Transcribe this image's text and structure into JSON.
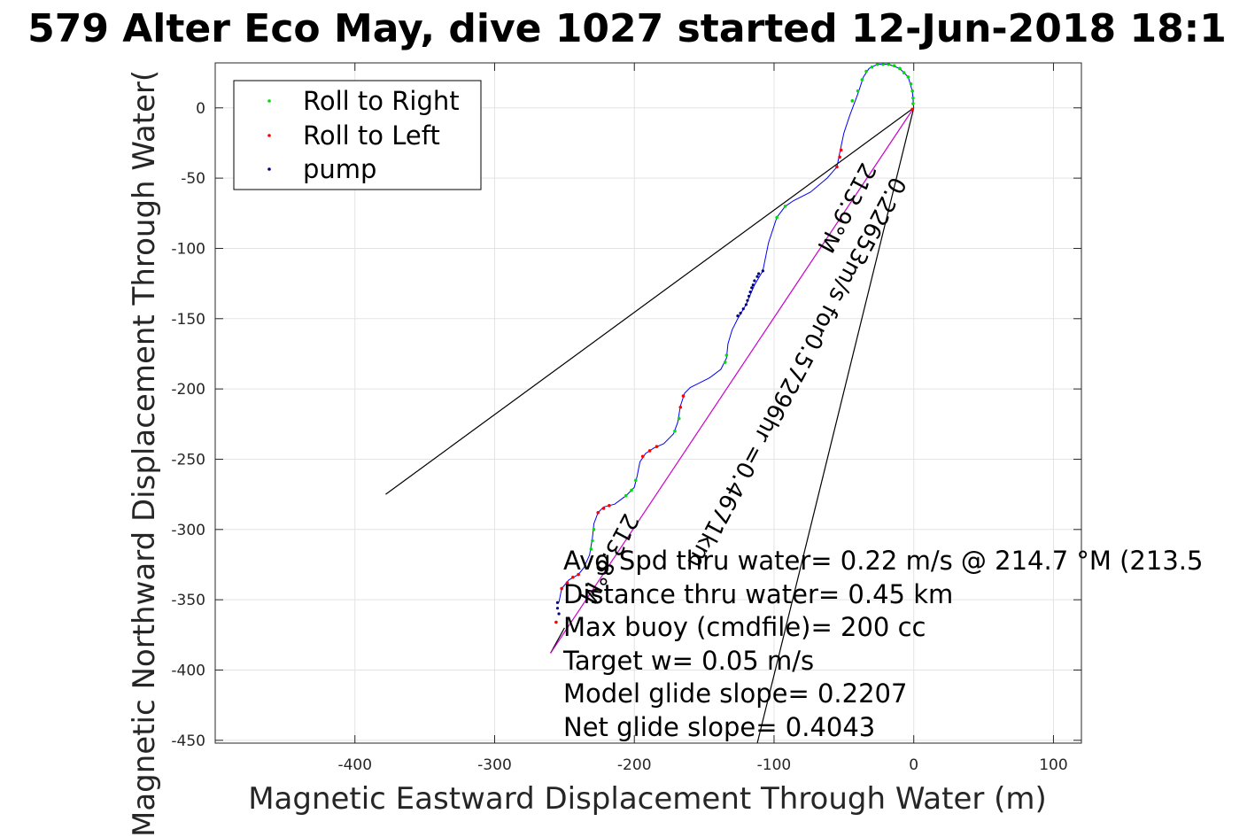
{
  "chart_data": {
    "type": "scatter",
    "title": "579 Alter Eco May, dive 1027 started 12-Jun-2018 18:1",
    "xlabel": "Magnetic Eastward Displacement Through Water (m)",
    "ylabel": "Magnetic Northward Displacement Through Water(",
    "xlim": [
      -500,
      120
    ],
    "ylim": [
      -452,
      32
    ],
    "xticks": [
      -400,
      -300,
      -200,
      -100,
      0,
      100
    ],
    "yticks": [
      0,
      -50,
      -100,
      -150,
      -200,
      -250,
      -300,
      -350,
      -400,
      -450
    ],
    "grid": true,
    "legend": {
      "placement": "top-left",
      "entries": [
        "Roll to Right",
        "Roll to Left",
        "pump"
      ]
    },
    "colors": {
      "roll_right": "#00dd00",
      "roll_left": "#ff0000",
      "pump": "#000080",
      "track": "#0000ff",
      "heading_line": "#cc00cc",
      "ref_line": "#000000"
    },
    "track": [
      [
        -254,
        -352
      ],
      [
        -252,
        -342
      ],
      [
        -247,
        -336
      ],
      [
        -240,
        -332
      ],
      [
        -236,
        -327
      ],
      [
        -232,
        -318
      ],
      [
        -230,
        -306
      ],
      [
        -229,
        -296
      ],
      [
        -226,
        -288
      ],
      [
        -222,
        -284
      ],
      [
        -214,
        -282
      ],
      [
        -206,
        -276
      ],
      [
        -200,
        -270
      ],
      [
        -198,
        -262
      ],
      [
        -196,
        -252
      ],
      [
        -192,
        -246
      ],
      [
        -186,
        -242
      ],
      [
        -179,
        -239
      ],
      [
        -172,
        -232
      ],
      [
        -169,
        -224
      ],
      [
        -167,
        -212
      ],
      [
        -164,
        -203
      ],
      [
        -160,
        -199
      ],
      [
        -154,
        -196
      ],
      [
        -146,
        -192
      ],
      [
        -138,
        -186
      ],
      [
        -134,
        -178
      ],
      [
        -133,
        -168
      ],
      [
        -130,
        -158
      ],
      [
        -126,
        -150
      ],
      [
        -120,
        -140
      ],
      [
        -114,
        -126
      ],
      [
        -108,
        -116
      ],
      [
        -104,
        -96
      ],
      [
        -98,
        -78
      ],
      [
        -92,
        -70
      ],
      [
        -86,
        -66
      ],
      [
        -74,
        -60
      ],
      [
        -62,
        -50
      ],
      [
        -55,
        -42
      ],
      [
        -53,
        -32
      ],
      [
        -50,
        -18
      ],
      [
        -46,
        -6
      ],
      [
        -40,
        10
      ],
      [
        -36,
        22
      ],
      [
        -32,
        28
      ],
      [
        -26,
        31
      ],
      [
        -18,
        31
      ],
      [
        -10,
        28
      ],
      [
        -4,
        22
      ],
      [
        -1,
        12
      ],
      [
        0,
        0
      ]
    ],
    "roll_right_points": [
      [
        -231,
        -314
      ],
      [
        -230,
        -308
      ],
      [
        -229,
        -300
      ],
      [
        -206,
        -276
      ],
      [
        -202,
        -272
      ],
      [
        -199,
        -265
      ],
      [
        -171,
        -230
      ],
      [
        -168,
        -221
      ],
      [
        -135,
        -181
      ],
      [
        -134,
        -176
      ],
      [
        -98,
        -78
      ],
      [
        -92,
        -70
      ],
      [
        -44,
        5
      ],
      [
        -40,
        12
      ],
      [
        -37,
        20
      ],
      [
        -34,
        26
      ],
      [
        -30,
        29
      ],
      [
        -26,
        31
      ],
      [
        -22,
        31
      ],
      [
        -18,
        31
      ],
      [
        -14,
        30
      ],
      [
        -10,
        28
      ],
      [
        -7,
        25
      ],
      [
        -4,
        22
      ],
      [
        -2,
        17
      ],
      [
        -1,
        12
      ],
      [
        -0.5,
        7
      ],
      [
        -0.5,
        3
      ]
    ],
    "roll_left_points": [
      [
        -252,
        -342
      ],
      [
        -248,
        -338
      ],
      [
        -244,
        -334
      ],
      [
        -240,
        -332
      ],
      [
        -226,
        -288
      ],
      [
        -222,
        -285
      ],
      [
        -218,
        -283
      ],
      [
        -194,
        -248
      ],
      [
        -189,
        -244
      ],
      [
        -184,
        -241
      ],
      [
        -167,
        -213
      ],
      [
        -165,
        -205
      ],
      [
        -55,
        -42
      ],
      [
        -53,
        -35
      ],
      [
        -52,
        -30
      ],
      [
        -256,
        -366
      ],
      [
        -1,
        -1
      ]
    ],
    "pump_points": [
      [
        -255,
        -352
      ],
      [
        -255,
        -356
      ],
      [
        -254,
        -360
      ],
      [
        -126,
        -148
      ],
      [
        -124,
        -146
      ],
      [
        -122,
        -143
      ],
      [
        -120,
        -140
      ],
      [
        -119,
        -137
      ],
      [
        -118,
        -134
      ],
      [
        -117,
        -131
      ],
      [
        -116,
        -128
      ],
      [
        -115,
        -126
      ],
      [
        -114,
        -123
      ],
      [
        -112,
        -120
      ],
      [
        -111,
        -118
      ],
      [
        -108,
        -116
      ]
    ],
    "lines": {
      "heading_line": [
        [
          -260,
          -388
        ],
        [
          0,
          0
        ]
      ],
      "ref_line_1": [
        [
          -378,
          -275
        ],
        [
          0,
          0
        ]
      ],
      "ref_line_2": [
        [
          -112,
          -452
        ],
        [
          0,
          0
        ]
      ],
      "ref_line_3": [
        [
          -260,
          -388
        ],
        [
          -250,
          -370
        ]
      ]
    },
    "annotations": [
      "Avg Spd thru water=  0.22 m/s @ 214.7 °M (213.5",
      "Distance thru water=  0.45 km",
      "Max buoy (cmdfile)= 200 cc",
      "Target w= 0.05 m/s",
      "Model glide slope= 0.2207",
      "Net glide slope= 0.4043"
    ],
    "rotated_annotations": [
      "0.22653m/s for0.57296hr =0.4671km",
      "213.9°M",
      "213.8°M"
    ]
  }
}
